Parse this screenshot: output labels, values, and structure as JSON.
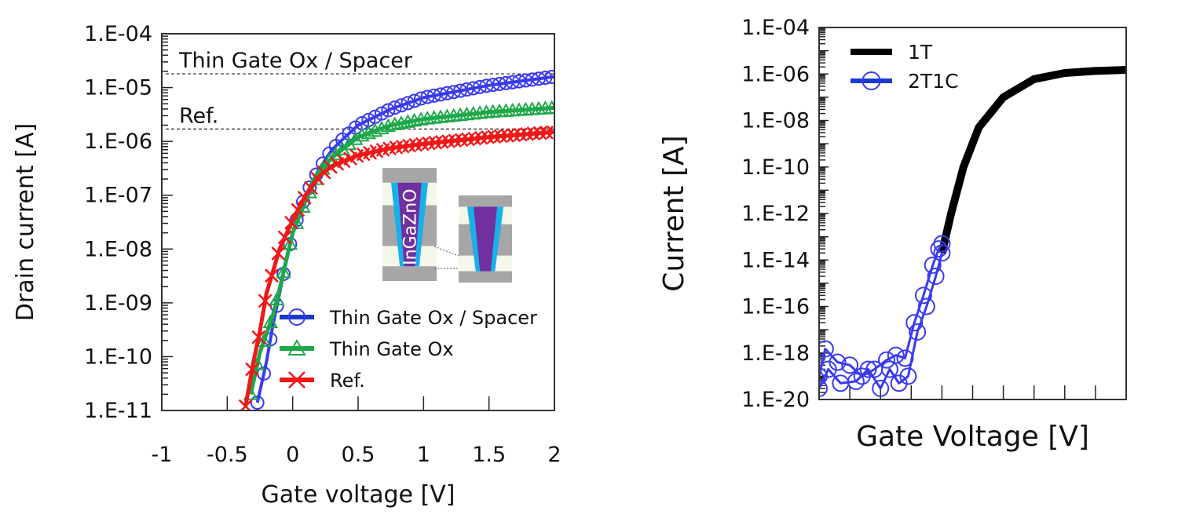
{
  "chart_data": [
    {
      "type": "line",
      "xlabel": "Gate voltage [V]",
      "ylabel": "Drain current [A]",
      "xlim": [
        -1,
        2
      ],
      "ylim": [
        1e-11,
        0.0001
      ],
      "yscale": "log",
      "xticks": [
        "-1",
        "-0.5",
        "0",
        "0.5",
        "1",
        "1.5",
        "2"
      ],
      "yticks": [
        "1.E-11",
        "1.E-10",
        "1.E-09",
        "1.E-08",
        "1.E-07",
        "1.E-06",
        "1.E-05",
        "1.E-04"
      ],
      "legend_position": "bottom-right",
      "series": [
        {
          "name": "Thin Gate Ox / Spacer",
          "color": "#3a3af0",
          "marker": "circle",
          "x": [
            -0.27,
            -0.2,
            -0.15,
            -0.1,
            -0.05,
            0,
            0.05,
            0.1,
            0.2,
            0.3,
            0.4,
            0.5,
            0.75,
            1.0,
            1.5,
            2.0
          ],
          "y": [
            1.4e-11,
            8e-11,
            4e-10,
            1.5e-09,
            6e-09,
            2e-08,
            5e-08,
            1e-07,
            3e-07,
            7e-07,
            1.2e-06,
            2e-06,
            4e-06,
            6.5e-06,
            1.1e-05,
            1.6e-05
          ]
        },
        {
          "name": "Thin Gate Ox",
          "color": "#1fa84a",
          "marker": "triangle",
          "x": [
            -0.32,
            -0.25,
            -0.15,
            -0.1,
            0,
            0.1,
            0.2,
            0.3,
            0.5,
            0.75,
            1.0,
            1.5,
            2.0
          ],
          "y": [
            2e-11,
            1.2e-10,
            6e-10,
            1.8e-09,
            2e-08,
            8e-08,
            2.5e-07,
            5e-07,
            1.2e-06,
            2e-06,
            2.6e-06,
            3.5e-06,
            4.2e-06
          ]
        },
        {
          "name": "Ref.",
          "color": "#f01818",
          "marker": "x",
          "x": [
            -0.36,
            -0.3,
            -0.25,
            -0.2,
            -0.1,
            0,
            0.1,
            0.2,
            0.3,
            0.5,
            0.75,
            1.0,
            1.5,
            2.0
          ],
          "y": [
            1.2e-11,
            8e-11,
            3e-10,
            1.5e-09,
            1e-08,
            3.5e-08,
            1e-07,
            2.2e-07,
            3.5e-07,
            5.5e-07,
            7.5e-07,
            9e-07,
            1.2e-06,
            1.5e-06
          ]
        }
      ],
      "annotations": [
        {
          "text": "Thin Gate Ox / Spacer",
          "y": 1.8e-05,
          "style": "dashed"
        },
        {
          "text": "Ref.",
          "y": 1.7e-06,
          "style": "dashed"
        }
      ],
      "inset_label": "InGaZnO"
    },
    {
      "type": "line",
      "xlabel": "Gate Voltage [V]",
      "ylabel": "Current [A]",
      "xlim": [
        0,
        10
      ],
      "ylim": [
        1e-20,
        0.0001
      ],
      "yscale": "log",
      "xticks": [],
      "yticks": [
        "1.E-20",
        "1.E-18",
        "1.E-16",
        "1.E-14",
        "1.E-12",
        "1.E-10",
        "1.E-08",
        "1.E-06",
        "1.E-04"
      ],
      "legend_position": "top-left",
      "series": [
        {
          "name": "1T",
          "color": "#000000",
          "marker": "none",
          "x": [
            4.0,
            4.3,
            4.7,
            5.2,
            6.0,
            7.0,
            8.0,
            9.0,
            10.0
          ],
          "y": [
            2e-14,
            1e-12,
            1e-10,
            5e-09,
            1e-07,
            6e-07,
            1.1e-06,
            1.35e-06,
            1.5e-06
          ]
        },
        {
          "name": "2T1C",
          "color": "#3a3af0",
          "marker": "circle",
          "x": [
            0,
            0.2,
            0.6,
            1.0,
            1.4,
            1.8,
            2.2,
            2.5,
            2.8,
            3.1,
            3.4,
            3.7,
            3.9,
            4.0
          ],
          "y": [
            1e-19,
            1.5e-18,
            4e-19,
            3e-19,
            1e-19,
            2e-19,
            5e-19,
            8e-19,
            6e-19,
            2e-17,
            3e-16,
            6e-15,
            3e-14,
            5e-14
          ]
        },
        {
          "name": "",
          "color": "#3a3af0",
          "marker": "circle",
          "x": [
            0,
            0.3,
            0.7,
            1.2,
            1.6,
            2.0,
            2.3,
            2.6,
            2.9,
            3.2,
            3.5,
            3.8,
            4.0
          ],
          "y": [
            3e-20,
            2e-19,
            5e-20,
            6e-20,
            2e-19,
            3e-20,
            2e-19,
            5e-20,
            1e-19,
            8e-18,
            1e-16,
            2e-15,
            2e-14
          ]
        }
      ]
    }
  ]
}
